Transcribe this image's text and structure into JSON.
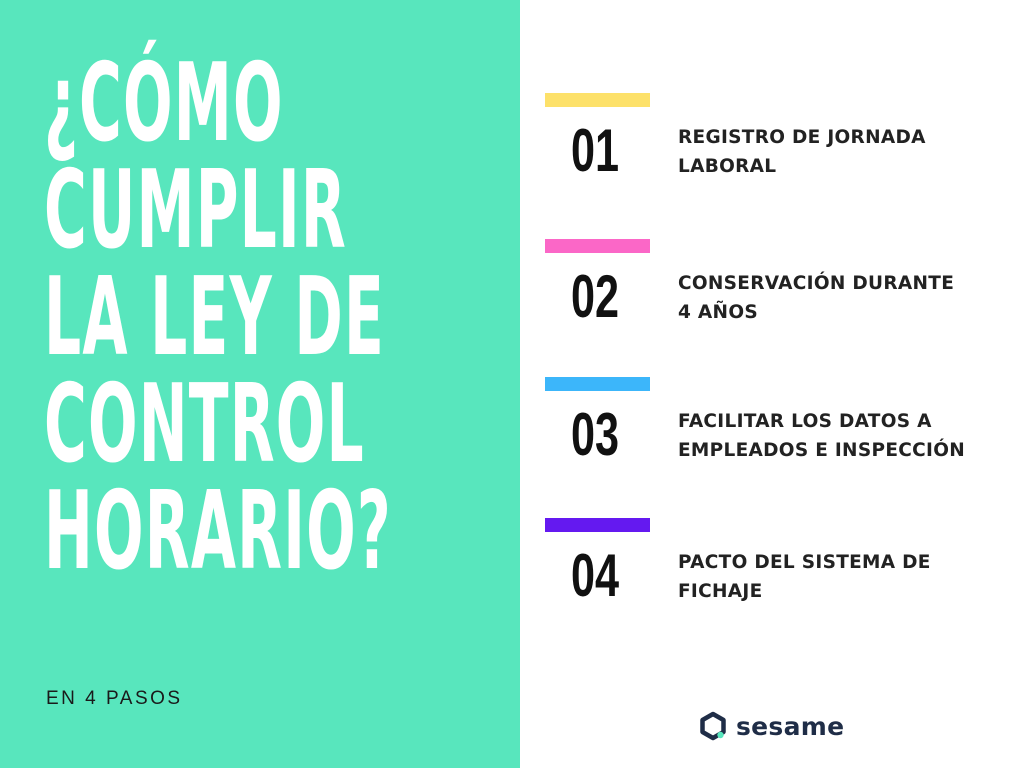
{
  "headline": {
    "lines": [
      "¿CÓMO",
      "CUMPLIR",
      "LA LEY DE",
      "CONTROL",
      "HORARIO?"
    ]
  },
  "subtitle": "EN 4 PASOS",
  "steps": [
    {
      "number": "01",
      "lines": [
        "REGISTRO DE JORNADA",
        "LABORAL"
      ],
      "color": "#fde16a"
    },
    {
      "number": "02",
      "lines": [
        "CONSERVACIÓN DURANTE",
        "4 AÑOS"
      ],
      "color": "#fb67c7"
    },
    {
      "number": "03",
      "lines": [
        "FACILITAR LOS DATOS A",
        "EMPLEADOS E INSPECCIÓN"
      ],
      "color": "#3cb6fa"
    },
    {
      "number": "04",
      "lines": [
        "PACTO DEL SISTEMA DE",
        "FICHAJE"
      ],
      "color": "#6419f0"
    }
  ],
  "brand": {
    "name": "sesame",
    "icon": "sesame-logo-icon",
    "icon_color": "#1f2d47",
    "accent_color": "#58e6bd"
  },
  "colors": {
    "panel_background": "#58e6bd",
    "headline_text": "#ffffff",
    "body_text": "#222222"
  }
}
